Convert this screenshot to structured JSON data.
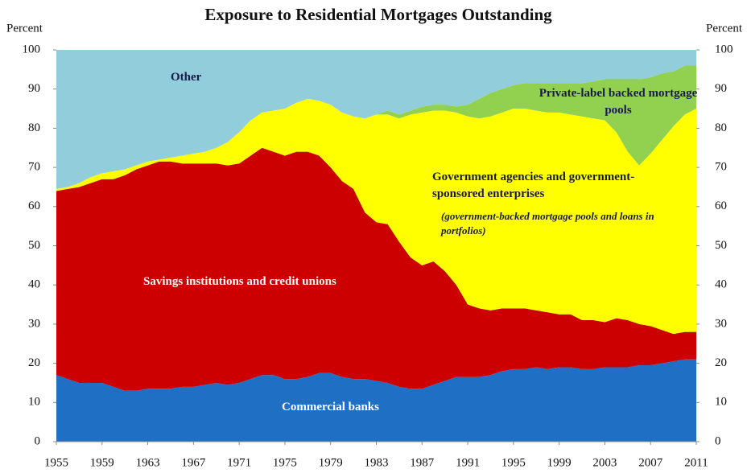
{
  "chart_data": {
    "type": "stacked_area",
    "title": "Exposure to Residential Mortgages Outstanding",
    "ylabel": "Percent",
    "y2label": "Percent",
    "x": [
      1955,
      1956,
      1957,
      1958,
      1959,
      1960,
      1961,
      1962,
      1963,
      1964,
      1965,
      1966,
      1967,
      1968,
      1969,
      1970,
      1971,
      1972,
      1973,
      1974,
      1975,
      1976,
      1977,
      1978,
      1979,
      1980,
      1981,
      1982,
      1983,
      1984,
      1985,
      1986,
      1987,
      1988,
      1989,
      1990,
      1991,
      1992,
      1993,
      1994,
      1995,
      1996,
      1997,
      1998,
      1999,
      2000,
      2001,
      2002,
      2003,
      2004,
      2005,
      2006,
      2007,
      2008,
      2009,
      2010,
      2011
    ],
    "xlim": [
      1955,
      2011
    ],
    "xticks": [
      1955,
      1959,
      1963,
      1967,
      1971,
      1975,
      1979,
      1983,
      1987,
      1991,
      1995,
      1999,
      2003,
      2007,
      2011
    ],
    "ylim": [
      0,
      100
    ],
    "yticks": [
      0,
      10,
      20,
      30,
      40,
      50,
      60,
      70,
      80,
      90,
      100
    ],
    "y2lim": [
      0,
      100
    ],
    "y2ticks": [
      0,
      10,
      20,
      30,
      40,
      50,
      60,
      70,
      80,
      90,
      100
    ],
    "series": [
      {
        "name": "Commercial banks",
        "color": "#1f6fc5",
        "values": [
          17,
          16,
          15,
          15,
          15,
          14,
          13,
          13,
          13.5,
          13.5,
          13.5,
          14,
          14,
          14.5,
          15,
          14.5,
          15,
          16,
          17,
          17,
          16,
          16,
          16.5,
          17.5,
          17.5,
          16.5,
          16,
          16,
          15.5,
          15,
          14,
          13.5,
          13.5,
          14.5,
          15.5,
          16.5,
          16.5,
          16.5,
          17,
          18,
          18.5,
          18.5,
          19,
          18.5,
          19,
          19,
          18.5,
          18.5,
          19,
          19,
          19,
          19.5,
          19.5,
          20,
          20.5,
          21,
          21
        ]
      },
      {
        "name": "Savings institutions and credit unions",
        "color": "#cc0000",
        "values": [
          47,
          48.5,
          50,
          51,
          52,
          53,
          55,
          56.5,
          57,
          58,
          58,
          57,
          57,
          56.5,
          56,
          56,
          56,
          57,
          58,
          57,
          57,
          58,
          57.5,
          55.5,
          52.5,
          50,
          48.5,
          42.5,
          40.5,
          40.5,
          37,
          33.5,
          31.5,
          31.5,
          28,
          23.5,
          18.5,
          17.5,
          16.5,
          16,
          15.5,
          15.5,
          14.5,
          14.5,
          13.5,
          13.5,
          12.5,
          12.5,
          11.5,
          12.5,
          12,
          10.5,
          10,
          8.5,
          7,
          7,
          7
        ]
      },
      {
        "name": "Government agencies and government-sponsored enterprises",
        "note": "(government-backed mortgage pools and loans in portfolios)",
        "color": "#ffff00",
        "values": [
          0.5,
          0.5,
          1,
          1.5,
          1.5,
          2,
          1.5,
          1,
          1,
          0.5,
          1,
          2,
          2.5,
          3,
          4,
          6,
          8,
          9,
          9,
          10.5,
          12,
          12.5,
          13.5,
          14,
          16,
          17.5,
          18.5,
          24,
          27.5,
          28,
          31.5,
          36.5,
          39,
          38.5,
          41,
          44,
          48,
          48.5,
          49.5,
          50,
          51,
          51,
          51,
          51,
          51.5,
          51,
          52,
          51.5,
          51.5,
          47.5,
          43,
          40.5,
          44,
          48.5,
          53,
          55.5,
          57
        ]
      },
      {
        "name": "Private-label backed mortgage pools",
        "color": "#92d050",
        "values": [
          0,
          0,
          0,
          0,
          0,
          0,
          0,
          0,
          0,
          0,
          0,
          0,
          0,
          0,
          0,
          0,
          0,
          0,
          0,
          0,
          0,
          0,
          0,
          0,
          0,
          0,
          0,
          0,
          0,
          1,
          1,
          1,
          1.5,
          1.5,
          1.5,
          1.5,
          3,
          5,
          6,
          6,
          6,
          6.5,
          7,
          7.5,
          7.5,
          8,
          8.5,
          9.5,
          10.5,
          13.5,
          18.5,
          22,
          19.5,
          17,
          14,
          12.5,
          11
        ]
      },
      {
        "name": "Other",
        "color": "#92cddc",
        "values": [
          35.5,
          35,
          34,
          32.5,
          31.5,
          31,
          30.5,
          29.5,
          28.5,
          28,
          27.5,
          27,
          26.5,
          26,
          25,
          23.5,
          21,
          18,
          16,
          15.5,
          15,
          13.5,
          12.5,
          13,
          14,
          16,
          17,
          17.5,
          16.5,
          15.5,
          16.5,
          15.5,
          14.5,
          14,
          14,
          14.5,
          14,
          12.5,
          11,
          10,
          9,
          8.5,
          8.5,
          8.5,
          8.5,
          8.5,
          8.5,
          8,
          7.5,
          7.5,
          7.5,
          7.5,
          7,
          6,
          5.5,
          4,
          4
        ]
      }
    ]
  }
}
